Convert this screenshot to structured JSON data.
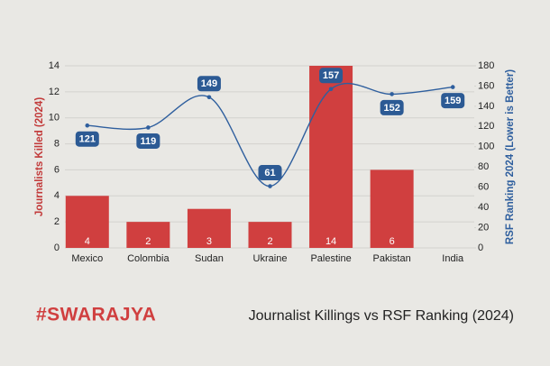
{
  "chart_data": {
    "type": "combo",
    "title": "Journalist Killings vs RSF Ranking (2024)",
    "brand": "#SWARAJYA",
    "categories": [
      "Mexico",
      "Colombia",
      "Sudan",
      "Ukraine",
      "Palestine",
      "Pakistan",
      "India"
    ],
    "series": [
      {
        "name": "Journalists Killed (2024)",
        "type": "bar",
        "color": "#d03f3f",
        "values": [
          4,
          2,
          3,
          2,
          14,
          6,
          null
        ]
      },
      {
        "name": "RSF Ranking 2024 (Lower is Better)",
        "type": "line",
        "axis": "y2",
        "color": "#2f5f9e",
        "values": [
          121,
          119,
          149,
          61,
          157,
          152,
          159
        ]
      }
    ],
    "ylabel": "Journalists Killed (2024)",
    "y2label": "RSF Ranking 2024 (Lower is Better)",
    "ylim": [
      0,
      14
    ],
    "yticks": [
      0,
      2,
      4,
      6,
      8,
      10,
      12,
      14
    ],
    "y2lim": [
      0,
      180
    ],
    "y2ticks": [
      0,
      20,
      40,
      60,
      80,
      100,
      120,
      140,
      160,
      180
    ],
    "grid": true
  }
}
